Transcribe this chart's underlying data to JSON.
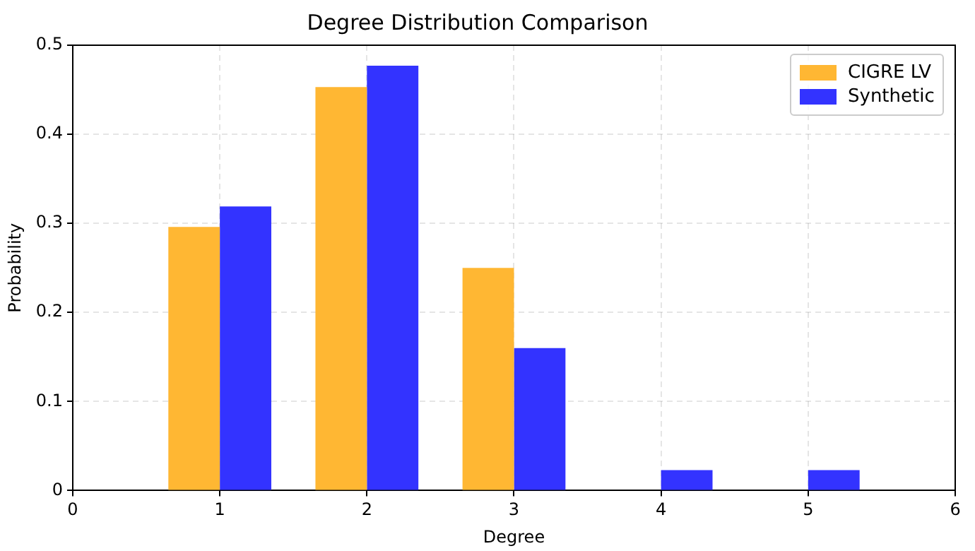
{
  "chart_data": {
    "type": "bar",
    "title": "Degree Distribution Comparison",
    "xlabel": "Degree",
    "ylabel": "Probability",
    "x": [
      1,
      2,
      3,
      4,
      5
    ],
    "series": [
      {
        "name": "CIGRE LV",
        "color": "#ffb733",
        "values": [
          0.296,
          0.453,
          0.25,
          0,
          0
        ]
      },
      {
        "name": "Synthetic",
        "color": "#3333ff",
        "values": [
          0.319,
          0.477,
          0.16,
          0.023,
          0.023
        ]
      }
    ],
    "xlim": [
      0,
      6
    ],
    "xticks": [
      0,
      1,
      2,
      3,
      4,
      5,
      6
    ],
    "ylim": [
      0,
      0.5
    ],
    "yticks": [
      0,
      0.1,
      0.2,
      0.3,
      0.4,
      0.5
    ],
    "grid": true,
    "legend": "top right"
  }
}
